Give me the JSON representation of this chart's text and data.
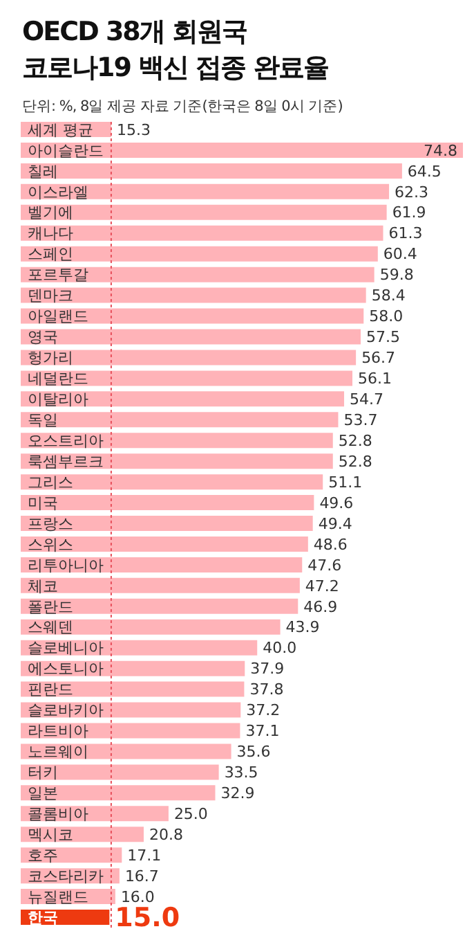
{
  "chart_data": {
    "type": "bar",
    "orientation": "horizontal",
    "title": "OECD 38개 회원국\n코로나19 백신 접종 완료율",
    "subtitle": "단위: %, 8일 제공 자료 기준(한국은 8일 0시 기준)",
    "categories": [
      "세계 평균",
      "아이슬란드",
      "칠레",
      "이스라엘",
      "벨기에",
      "캐나다",
      "스페인",
      "포르투갈",
      "덴마크",
      "아일랜드",
      "영국",
      "헝가리",
      "네덜란드",
      "이탈리아",
      "독일",
      "오스트리아",
      "룩셈부르크",
      "그리스",
      "미국",
      "프랑스",
      "스위스",
      "리투아니아",
      "체코",
      "폴란드",
      "스웨덴",
      "슬로베니아",
      "에스토니아",
      "핀란드",
      "슬로바키아",
      "라트비아",
      "노르웨이",
      "터키",
      "일본",
      "콜롬비아",
      "멕시코",
      "호주",
      "코스타리카",
      "뉴질랜드",
      "한국"
    ],
    "values": [
      15.3,
      74.8,
      64.5,
      62.3,
      61.9,
      61.3,
      60.4,
      59.8,
      58.4,
      58.0,
      57.5,
      56.7,
      56.1,
      54.7,
      53.7,
      52.8,
      52.8,
      51.1,
      49.6,
      49.4,
      48.6,
      47.6,
      47.2,
      46.9,
      43.9,
      40.0,
      37.9,
      37.8,
      37.2,
      37.1,
      35.6,
      33.5,
      32.9,
      25.0,
      20.8,
      17.1,
      16.7,
      16.0,
      15.0
    ],
    "value_labels": [
      "15.3",
      "74.8",
      "64.5",
      "62.3",
      "61.9",
      "61.3",
      "60.4",
      "59.8",
      "58.4",
      "58.0",
      "57.5",
      "56.7",
      "56.1",
      "54.7",
      "53.7",
      "52.8",
      "52.8",
      "51.1",
      "49.6",
      "49.4",
      "48.6",
      "47.6",
      "47.2",
      "46.9",
      "43.9",
      "40.0",
      "37.9",
      "37.8",
      "37.2",
      "37.1",
      "35.6",
      "33.5",
      "32.9",
      "25.0",
      "20.8",
      "17.1",
      "16.7",
      "16.0",
      "15.0"
    ],
    "color": "#ffb3b8",
    "colors": [
      "#ffb3b8",
      "#ffb3b8",
      "#ffb3b8",
      "#ffb3b8",
      "#ffb3b8",
      "#ffb3b8",
      "#ffb3b8",
      "#ffb3b8",
      "#ffb3b8",
      "#ffb3b8",
      "#ffb3b8",
      "#ffb3b8",
      "#ffb3b8",
      "#ffb3b8",
      "#ffb3b8",
      "#ffb3b8",
      "#ffb3b8",
      "#ffb3b8",
      "#ffb3b8",
      "#ffb3b8",
      "#ffb3b8",
      "#ffb3b8",
      "#ffb3b8",
      "#ffb3b8",
      "#ffb3b8",
      "#ffb3b8",
      "#ffb3b8",
      "#ffb3b8",
      "#ffb3b8",
      "#ffb3b8",
      "#ffb3b8",
      "#ffb3b8",
      "#ffb3b8",
      "#ffb3b8",
      "#ffb3b8",
      "#ffb3b8",
      "#ffb3b8",
      "#ffb3b8",
      "#ee3a10"
    ],
    "ref_lines": [
      {
        "axis": "x",
        "value": 15.3,
        "color": "#e8505b",
        "line_style": "dotted"
      }
    ]
  }
}
